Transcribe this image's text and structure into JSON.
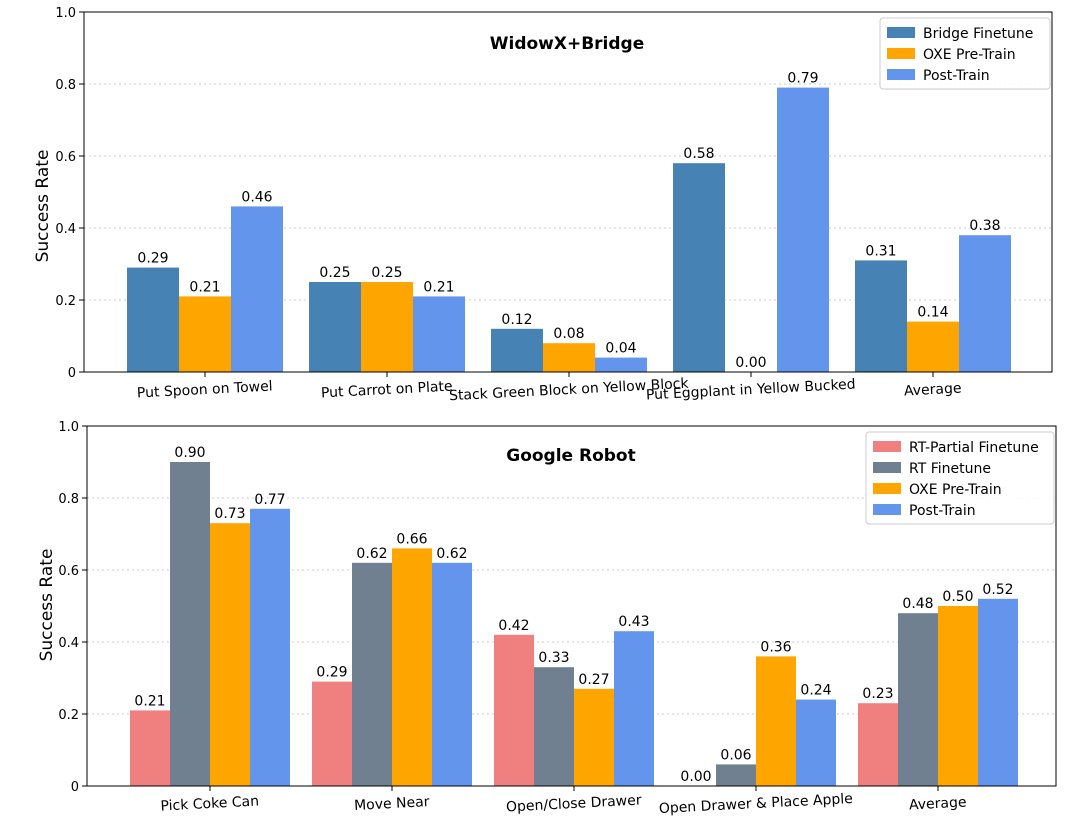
{
  "chart_data": [
    {
      "type": "bar",
      "title": "WidowX+Bridge",
      "xlabel": "",
      "ylabel": "Success Rate",
      "ylim": [
        0,
        1.0
      ],
      "yticks": [
        "0",
        "0.2",
        "0.4",
        "0.6",
        "0.8",
        "1.0"
      ],
      "grid": "horizontal dotted",
      "legend_position": "top-right",
      "categories": [
        "Put Spoon on Towel",
        "Put Carrot on Plate",
        "Stack Green Block on Yellow Block",
        "Put Eggplant in Yellow Bucked",
        "Average"
      ],
      "series": [
        {
          "name": "Bridge Finetune",
          "color": "#4682b4",
          "values": [
            0.29,
            0.25,
            0.12,
            0.58,
            0.31
          ]
        },
        {
          "name": "OXE Pre-Train",
          "color": "#ffa500",
          "values": [
            0.21,
            0.25,
            0.08,
            0.0,
            0.14
          ]
        },
        {
          "name": "Post-Train",
          "color": "#6495ed",
          "values": [
            0.46,
            0.21,
            0.04,
            0.79,
            0.38
          ]
        }
      ]
    },
    {
      "type": "bar",
      "title": "Google Robot",
      "xlabel": "",
      "ylabel": "Success Rate",
      "ylim": [
        0,
        1.0
      ],
      "yticks": [
        "0",
        "0.2",
        "0.4",
        "0.6",
        "0.8",
        "1.0"
      ],
      "grid": "horizontal dotted",
      "legend_position": "top-right",
      "categories": [
        "Pick Coke Can",
        "Move Near",
        "Open/Close Drawer",
        "Open Drawer & Place Apple",
        "Average"
      ],
      "series": [
        {
          "name": "RT-Partial Finetune",
          "color": "#f08080",
          "values": [
            0.21,
            0.29,
            0.42,
            0.0,
            0.23
          ]
        },
        {
          "name": "RT Finetune",
          "color": "#708090",
          "values": [
            0.9,
            0.62,
            0.33,
            0.06,
            0.48
          ]
        },
        {
          "name": "OXE Pre-Train",
          "color": "#ffa500",
          "values": [
            0.73,
            0.66,
            0.27,
            0.36,
            0.5
          ]
        },
        {
          "name": "Post-Train",
          "color": "#6495ed",
          "values": [
            0.77,
            0.62,
            0.43,
            0.24,
            0.52
          ]
        }
      ]
    }
  ]
}
